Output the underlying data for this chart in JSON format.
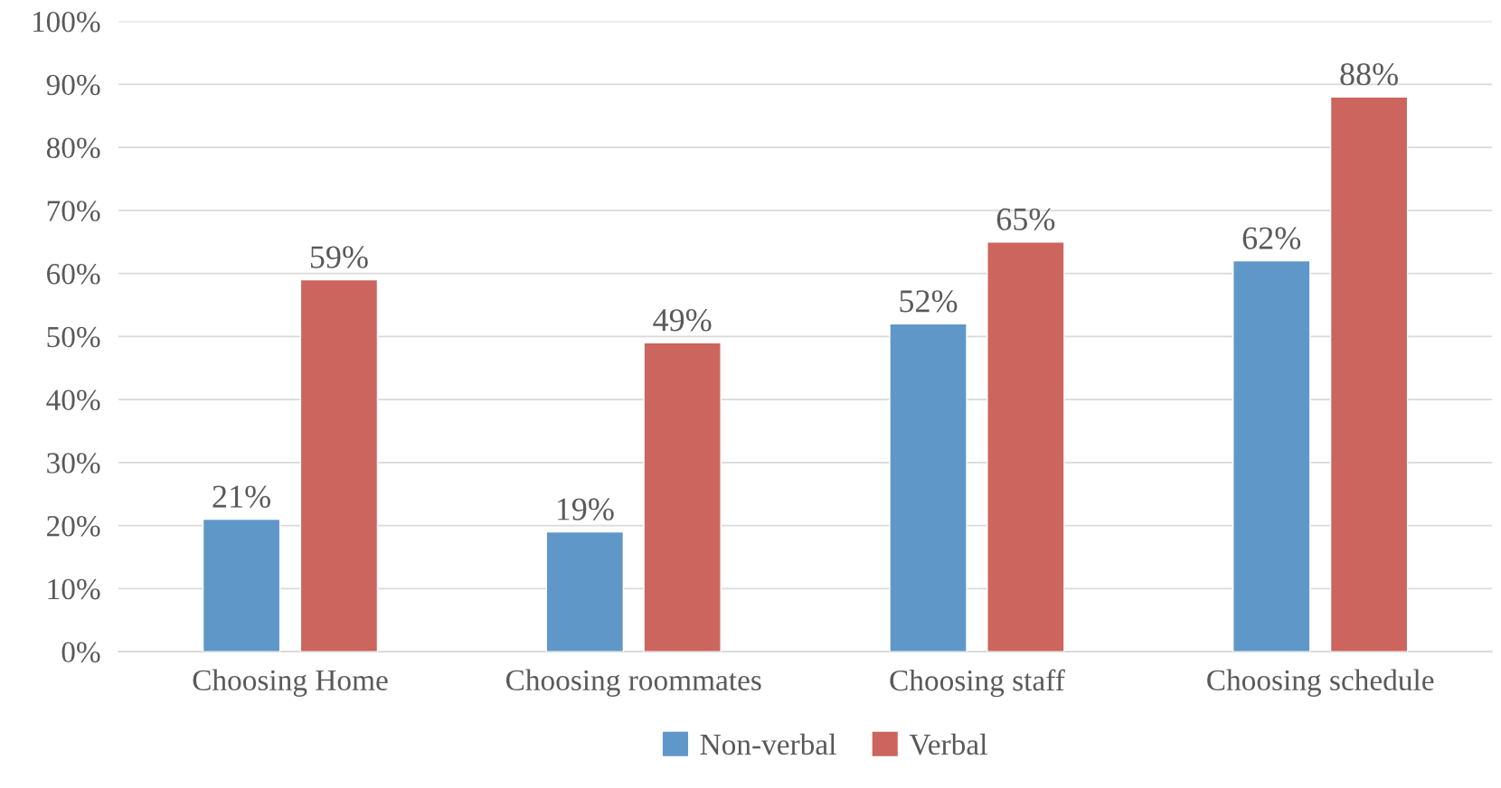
{
  "chart_data": {
    "type": "bar",
    "categories": [
      "Choosing Home",
      "Choosing roommates",
      "Choosing staff",
      "Choosing schedule"
    ],
    "series": [
      {
        "name": "Non-verbal",
        "color": "#6097c9",
        "values": [
          21,
          19,
          52,
          62
        ],
        "value_labels": [
          "21%",
          "19%",
          "52%",
          "62%"
        ]
      },
      {
        "name": "Verbal",
        "color": "#cc655e",
        "values": [
          59,
          49,
          65,
          88
        ],
        "value_labels": [
          "59%",
          "49%",
          "65%",
          "88%"
        ]
      }
    ],
    "ylim": [
      0,
      100
    ],
    "yticks": [
      {
        "value": 0,
        "label": "0%"
      },
      {
        "value": 10,
        "label": "10%"
      },
      {
        "value": 20,
        "label": "20%"
      },
      {
        "value": 30,
        "label": "30%"
      },
      {
        "value": 40,
        "label": "40%"
      },
      {
        "value": 50,
        "label": "50%"
      },
      {
        "value": 60,
        "label": "60%"
      },
      {
        "value": 70,
        "label": "70%"
      },
      {
        "value": 80,
        "label": "80%"
      },
      {
        "value": 90,
        "label": "90%"
      },
      {
        "value": 100,
        "label": "100%"
      }
    ],
    "grid": "y",
    "legend": "bottom"
  }
}
